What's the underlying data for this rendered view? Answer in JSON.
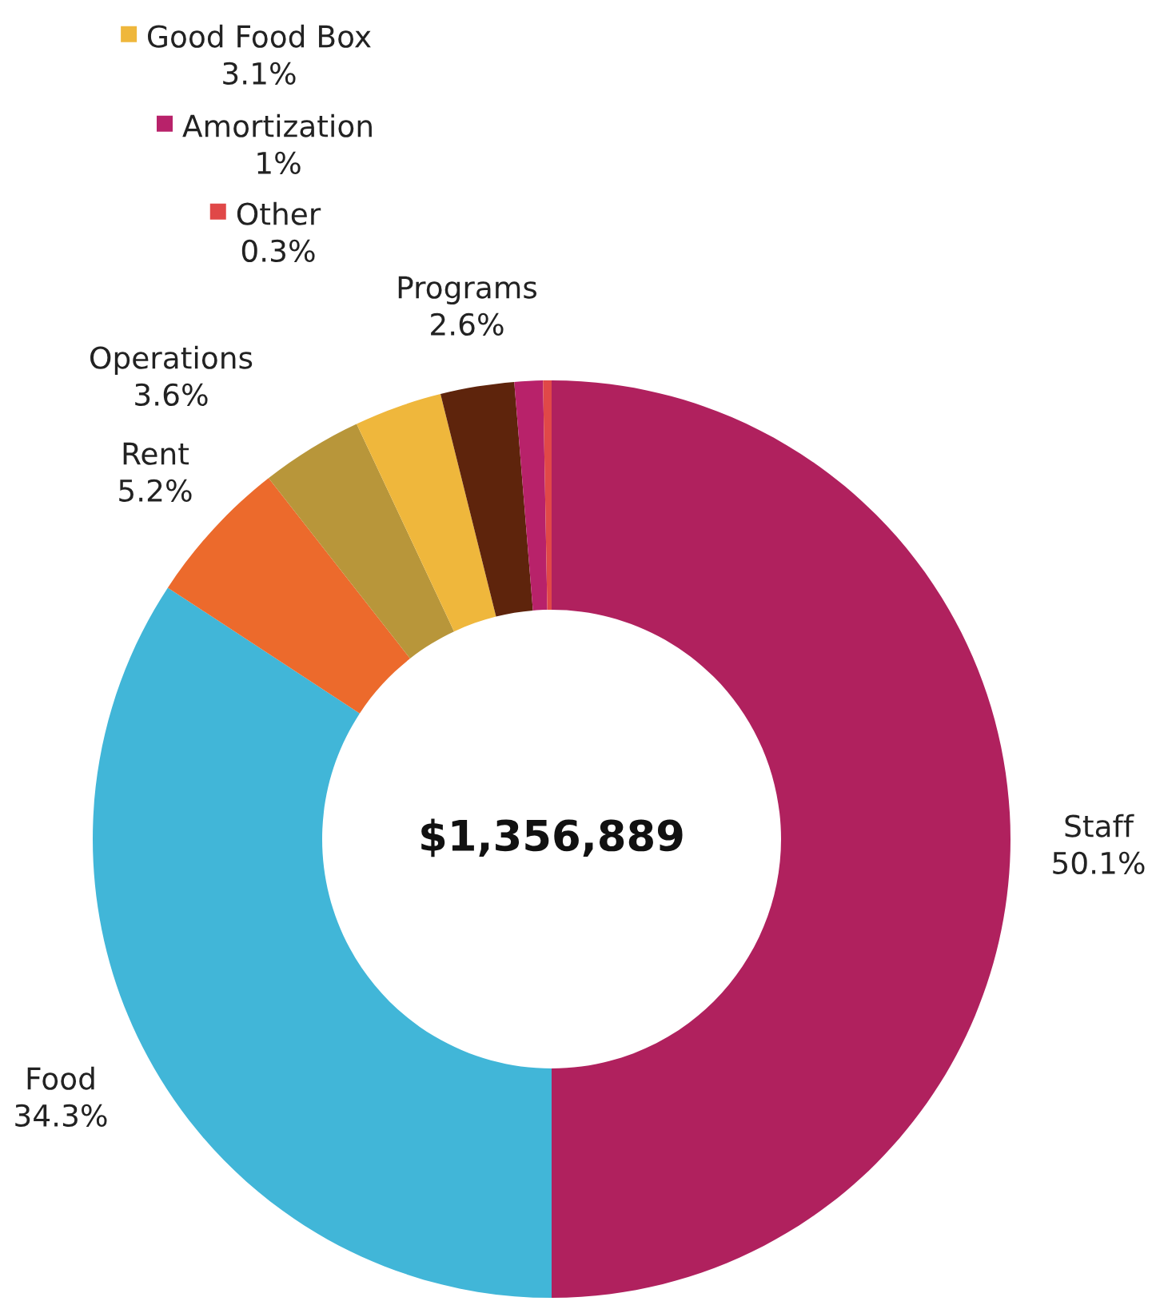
{
  "chart_data": {
    "type": "donut",
    "categories": [
      "Staff",
      "Food",
      "Rent",
      "Operations",
      "Good Food Box",
      "Programs",
      "Amortization",
      "Other"
    ],
    "values": [
      50.1,
      34.3,
      5.2,
      3.6,
      3.1,
      2.6,
      1,
      0.3
    ],
    "value_labels": [
      "50.1%",
      "34.3%",
      "5.2%",
      "3.6%",
      "3.1%",
      "2.6%",
      "1%",
      "0.3%"
    ],
    "colors": [
      "#b0215e",
      "#41b6d8",
      "#ec6a2c",
      "#b8963a",
      "#efb73c",
      "#5e240c",
      "#b8226a",
      "#e04848"
    ],
    "legend": "top left",
    "annotations": [
      "$1,356,889"
    ]
  }
}
